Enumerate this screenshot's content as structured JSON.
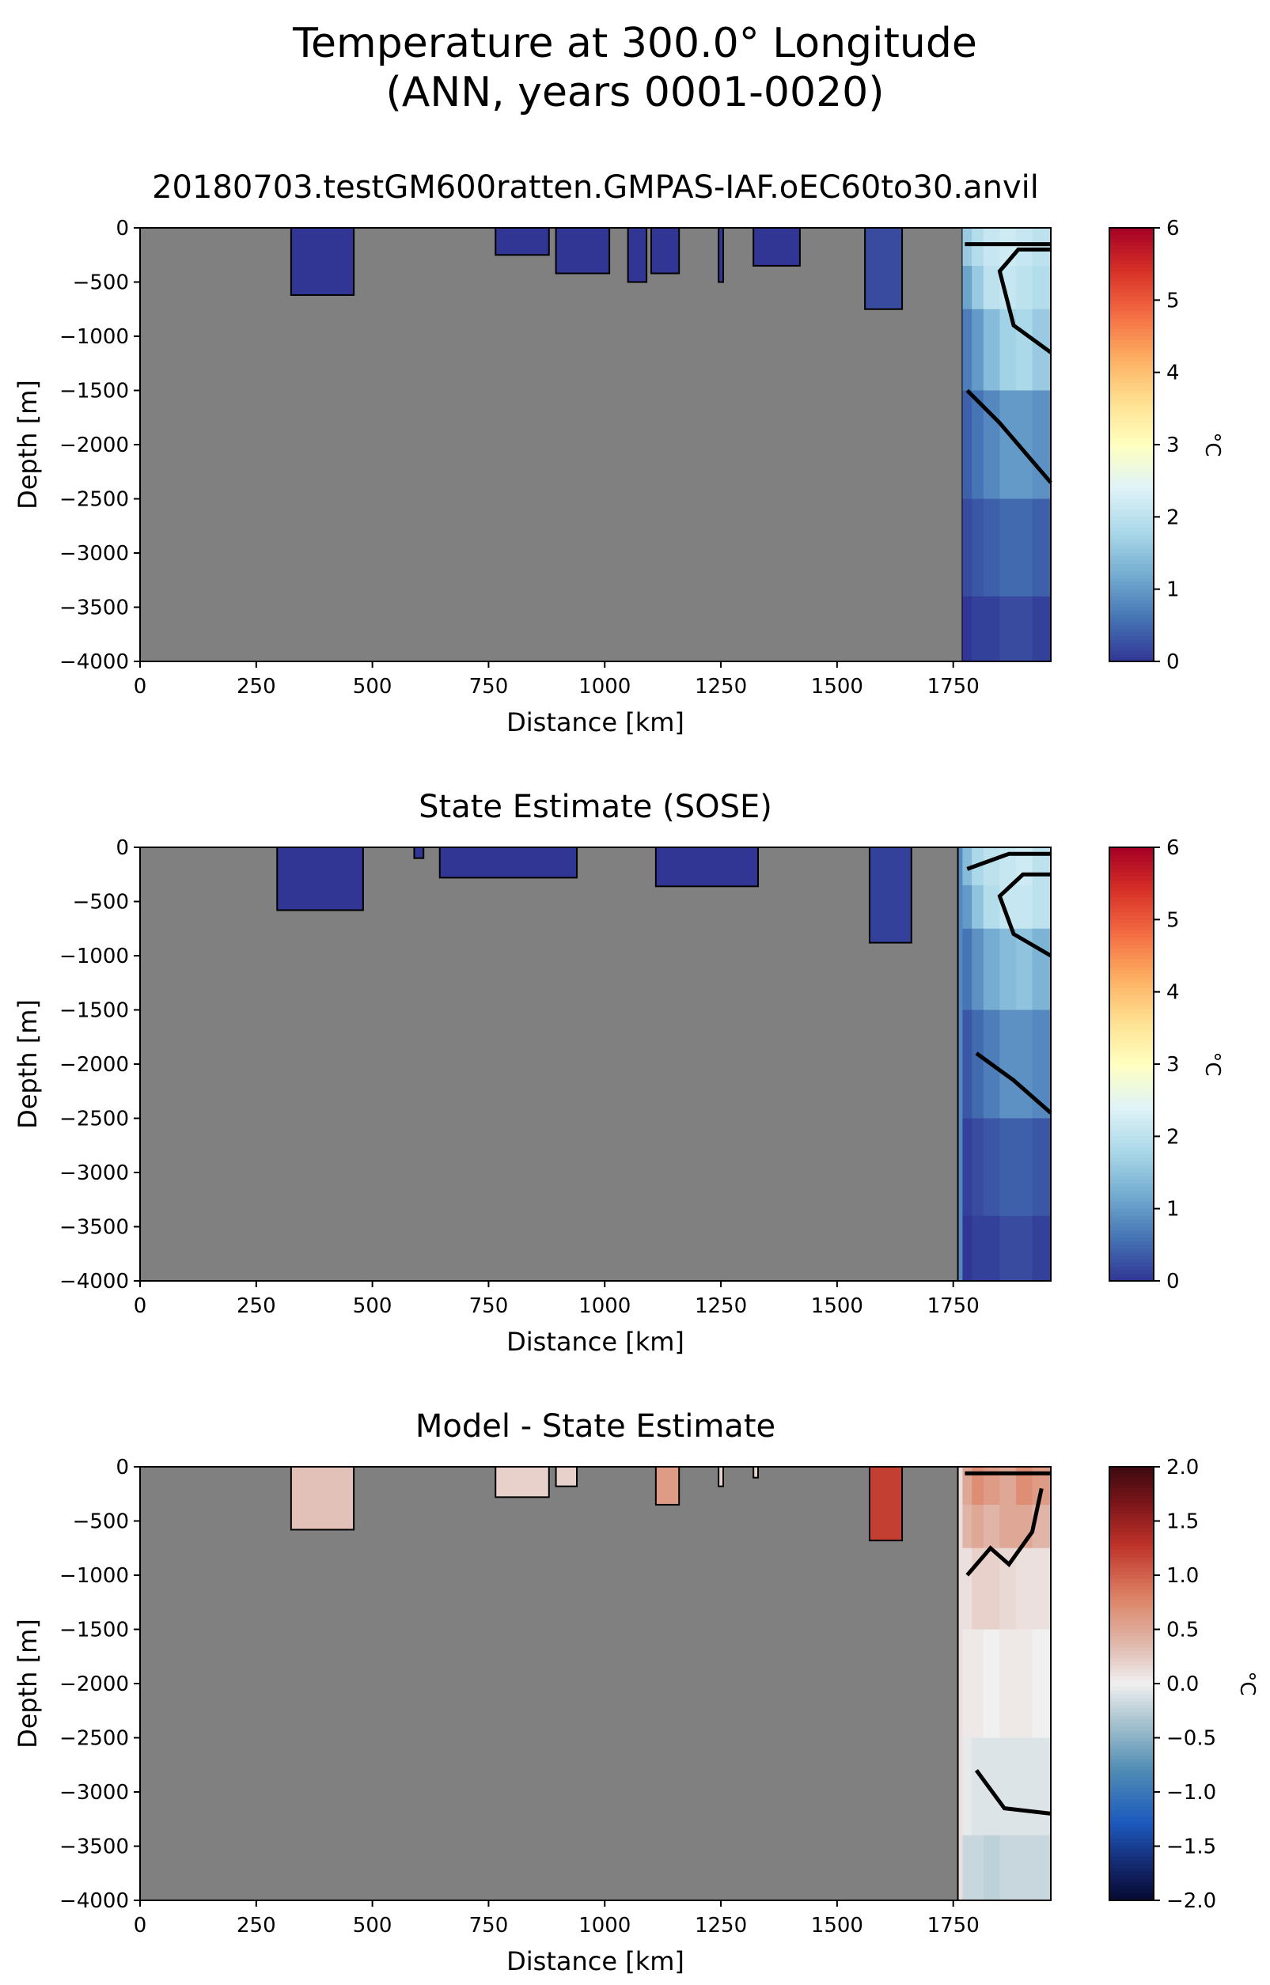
{
  "figure": {
    "title_line1": "Temperature at 300.0° Longitude",
    "title_line2": "(ANN, years 0001-0020)"
  },
  "chart_data": [
    {
      "type": "heatmap",
      "title": "20180703.testGM600ratten.GMPAS-IAF.oEC60to30.anvil",
      "xlabel": "Distance [km]",
      "ylabel": "Depth [m]",
      "xlim": [
        0,
        1960
      ],
      "ylim": [
        -4000,
        0
      ],
      "xticks": [
        0,
        250,
        500,
        750,
        1000,
        1250,
        1500,
        1750
      ],
      "yticks": [
        0,
        -500,
        -1000,
        -1500,
        -2000,
        -2500,
        -3000,
        -3500,
        -4000
      ],
      "colorbar": {
        "label": "°C",
        "range": [
          0,
          6
        ],
        "ticks": [
          0,
          1,
          2,
          3,
          4,
          5,
          6
        ],
        "colormap": "RdYlBu_r"
      },
      "land_color": "#808080",
      "ocean_regions": [
        {
          "x": [
            325,
            460
          ],
          "depth": [
            0,
            -620
          ],
          "value": 0.0
        },
        {
          "x": [
            765,
            880
          ],
          "depth": [
            0,
            -250
          ],
          "value": 0.0
        },
        {
          "x": [
            895,
            1010
          ],
          "depth": [
            0,
            -420
          ],
          "value": 0.0
        },
        {
          "x": [
            1050,
            1090
          ],
          "depth": [
            0,
            -500
          ],
          "value": 0.0
        },
        {
          "x": [
            1100,
            1160
          ],
          "depth": [
            0,
            -420
          ],
          "value": 0.0
        },
        {
          "x": [
            1245,
            1255
          ],
          "depth": [
            0,
            -500
          ],
          "value": 0.0
        },
        {
          "x": [
            1320,
            1420
          ],
          "depth": [
            0,
            -350
          ],
          "value": 0.0
        },
        {
          "x": [
            1560,
            1640
          ],
          "depth": [
            0,
            -750
          ],
          "value": 0.2
        },
        {
          "x": [
            1770,
            1960
          ],
          "depth": [
            0,
            -4000
          ],
          "value": 0.8
        }
      ],
      "cross_section": {
        "x": [
          1780,
          1800,
          1830,
          1870,
          1900,
          1940
        ],
        "depth": [
          -200,
          -500,
          -1000,
          -2000,
          -3000,
          -3800
        ],
        "values": [
          [
            1.6,
            1.9,
            2.1,
            2.2,
            2.1,
            2.0
          ],
          [
            1.1,
            1.6,
            2.0,
            2.1,
            2.0,
            1.9
          ],
          [
            0.7,
            1.0,
            1.4,
            1.7,
            1.8,
            1.6
          ],
          [
            0.4,
            0.6,
            0.8,
            1.0,
            1.0,
            0.9
          ],
          [
            0.2,
            0.3,
            0.4,
            0.5,
            0.5,
            0.4
          ],
          [
            0.0,
            0.1,
            0.1,
            0.2,
            0.2,
            0.1
          ]
        ]
      },
      "contours": [
        {
          "level": 0.0,
          "points": [
            [
              1775,
              -150
            ],
            [
              1850,
              -150
            ],
            [
              1960,
              -150
            ]
          ]
        },
        {
          "level": 1.0,
          "points": [
            [
              1780,
              -1500
            ],
            [
              1850,
              -1800
            ],
            [
              1960,
              -2350
            ]
          ]
        },
        {
          "level": 2.0,
          "points": [
            [
              1960,
              -1150
            ],
            [
              1880,
              -900
            ],
            [
              1850,
              -400
            ],
            [
              1890,
              -200
            ],
            [
              1960,
              -200
            ]
          ]
        }
      ]
    },
    {
      "type": "heatmap",
      "title": "State Estimate (SOSE)",
      "xlabel": "Distance [km]",
      "ylabel": "Depth [m]",
      "xlim": [
        0,
        1960
      ],
      "ylim": [
        -4000,
        0
      ],
      "xticks": [
        0,
        250,
        500,
        750,
        1000,
        1250,
        1500,
        1750
      ],
      "yticks": [
        0,
        -500,
        -1000,
        -1500,
        -2000,
        -2500,
        -3000,
        -3500,
        -4000
      ],
      "colorbar": {
        "label": "°C",
        "range": [
          0,
          6
        ],
        "ticks": [
          0,
          1,
          2,
          3,
          4,
          5,
          6
        ],
        "colormap": "RdYlBu_r"
      },
      "land_color": "#808080",
      "ocean_regions": [
        {
          "x": [
            295,
            480
          ],
          "depth": [
            0,
            -580
          ],
          "value": 0.0
        },
        {
          "x": [
            590,
            610
          ],
          "depth": [
            0,
            -100
          ],
          "value": 0.0
        },
        {
          "x": [
            645,
            940
          ],
          "depth": [
            0,
            -280
          ],
          "value": 0.0
        },
        {
          "x": [
            1110,
            1330
          ],
          "depth": [
            0,
            -360
          ],
          "value": 0.0
        },
        {
          "x": [
            1570,
            1660
          ],
          "depth": [
            0,
            -880
          ],
          "value": 0.1
        },
        {
          "x": [
            1760,
            1960
          ],
          "depth": [
            0,
            -4000
          ],
          "value": 0.8
        }
      ],
      "cross_section": {
        "x": [
          1780,
          1800,
          1830,
          1870,
          1900,
          1940
        ],
        "depth": [
          -200,
          -500,
          -1000,
          -2000,
          -3000,
          -3800
        ],
        "values": [
          [
            1.4,
            1.8,
            2.0,
            2.1,
            2.2,
            2.0
          ],
          [
            1.0,
            1.5,
            1.9,
            2.1,
            2.1,
            2.0
          ],
          [
            0.6,
            0.9,
            1.2,
            1.4,
            1.5,
            1.3
          ],
          [
            0.3,
            0.5,
            0.7,
            0.9,
            0.9,
            0.8
          ],
          [
            0.1,
            0.2,
            0.3,
            0.4,
            0.4,
            0.3
          ],
          [
            0.0,
            0.1,
            0.1,
            0.2,
            0.2,
            0.1
          ]
        ]
      },
      "contours": [
        {
          "level": 0.0,
          "points": [
            [
              1780,
              -200
            ],
            [
              1870,
              -60
            ],
            [
              1960,
              -60
            ]
          ]
        },
        {
          "level": 1.0,
          "points": [
            [
              1800,
              -1900
            ],
            [
              1880,
              -2150
            ],
            [
              1960,
              -2450
            ]
          ]
        },
        {
          "level": 2.0,
          "points": [
            [
              1960,
              -1000
            ],
            [
              1880,
              -800
            ],
            [
              1850,
              -450
            ],
            [
              1900,
              -250
            ],
            [
              1960,
              -250
            ]
          ]
        }
      ]
    },
    {
      "type": "heatmap",
      "title": "Model - State Estimate",
      "xlabel": "Distance [km]",
      "ylabel": "Depth [m]",
      "xlim": [
        0,
        1960
      ],
      "ylim": [
        -4000,
        0
      ],
      "xticks": [
        0,
        250,
        500,
        750,
        1000,
        1250,
        1500,
        1750
      ],
      "yticks": [
        0,
        -500,
        -1000,
        -1500,
        -2000,
        -2500,
        -3000,
        -3500,
        -4000
      ],
      "colorbar": {
        "label": "°C",
        "range": [
          -2,
          2
        ],
        "ticks": [
          2.0,
          1.5,
          1.0,
          0.5,
          0.0,
          -0.5,
          -1.0,
          -1.5,
          -2.0
        ],
        "tick_labels": [
          "2.0",
          "1.5",
          "1.0",
          "0.5",
          "0.0",
          "−0.5",
          "−1.0",
          "−1.5",
          "−2.0"
        ],
        "colormap": "RdBu_r"
      },
      "land_color": "#808080",
      "ocean_regions": [
        {
          "x": [
            325,
            460
          ],
          "depth": [
            0,
            -580
          ],
          "value": 0.3
        },
        {
          "x": [
            765,
            880
          ],
          "depth": [
            0,
            -280
          ],
          "value": 0.2
        },
        {
          "x": [
            895,
            940
          ],
          "depth": [
            0,
            -180
          ],
          "value": 0.2
        },
        {
          "x": [
            1110,
            1160
          ],
          "depth": [
            0,
            -350
          ],
          "value": 0.6
        },
        {
          "x": [
            1245,
            1255
          ],
          "depth": [
            0,
            -180
          ],
          "value": 0.2
        },
        {
          "x": [
            1320,
            1330
          ],
          "depth": [
            0,
            -100
          ],
          "value": 0.2
        },
        {
          "x": [
            1570,
            1640
          ],
          "depth": [
            0,
            -680
          ],
          "value": 1.2
        },
        {
          "x": [
            1760,
            1960
          ],
          "depth": [
            0,
            -4000
          ],
          "value": 0.1
        }
      ],
      "cross_section": {
        "x": [
          1780,
          1800,
          1830,
          1870,
          1900,
          1940
        ],
        "depth": [
          -200,
          -500,
          -1000,
          -2000,
          -3000,
          -3800
        ],
        "values": [
          [
            0.5,
            0.7,
            0.6,
            0.5,
            0.7,
            0.6
          ],
          [
            0.4,
            0.5,
            0.4,
            0.5,
            0.5,
            0.4
          ],
          [
            0.1,
            0.2,
            0.2,
            0.15,
            0.1,
            0.1
          ],
          [
            0.05,
            0.05,
            0.0,
            0.05,
            0.05,
            0.0
          ],
          [
            -0.05,
            -0.1,
            -0.1,
            -0.1,
            -0.1,
            -0.1
          ],
          [
            -0.2,
            -0.2,
            -0.25,
            -0.2,
            -0.2,
            -0.2
          ]
        ]
      },
      "contours": [
        {
          "level": 0.5,
          "points": [
            [
              1780,
              -1000
            ],
            [
              1830,
              -750
            ],
            [
              1870,
              -900
            ],
            [
              1920,
              -600
            ],
            [
              1940,
              -200
            ]
          ]
        },
        {
          "level": 0.0,
          "points": [
            [
              1800,
              -2800
            ],
            [
              1860,
              -3150
            ],
            [
              1960,
              -3200
            ]
          ]
        },
        {
          "level": 0.5,
          "points": [
            [
              1775,
              -60
            ],
            [
              1960,
              -60
            ]
          ]
        }
      ]
    }
  ]
}
